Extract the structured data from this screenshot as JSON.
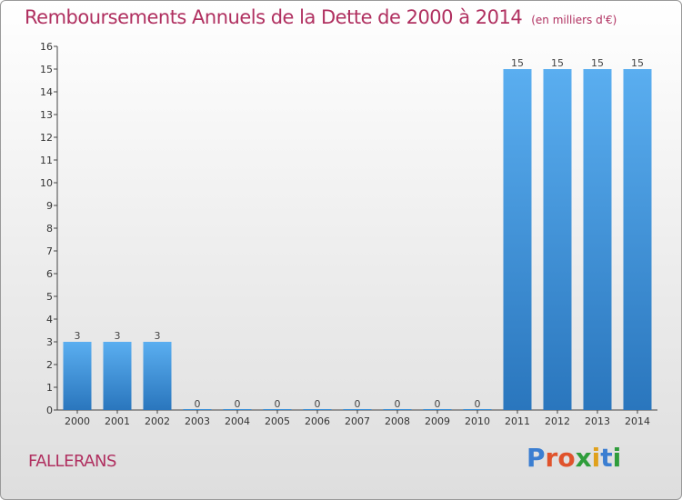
{
  "chart_data": {
    "type": "bar",
    "title": "Remboursements Annuels de la Dette de 2000 à 2014",
    "unit": "(en milliers d'€)",
    "categories": [
      "2000",
      "2001",
      "2002",
      "2003",
      "2004",
      "2005",
      "2006",
      "2007",
      "2008",
      "2009",
      "2010",
      "2011",
      "2012",
      "2013",
      "2014"
    ],
    "values": [
      3,
      3,
      3,
      0,
      0,
      0,
      0,
      0,
      0,
      0,
      0,
      15,
      15,
      15,
      15
    ],
    "yticks": [
      "0",
      "1",
      "2",
      "3",
      "4",
      "5",
      "6",
      "7",
      "8",
      "9",
      "10",
      "11",
      "12",
      "13",
      "14",
      "15",
      "16"
    ],
    "ylim": [
      0,
      16
    ],
    "grid": false,
    "bar_color": "#3a8fd6"
  },
  "commune": "FALLERANS",
  "logo": {
    "letters": [
      {
        "ch": "P",
        "color": "#3b7ed1"
      },
      {
        "ch": "r",
        "color": "#e0532c"
      },
      {
        "ch": "o",
        "color": "#e0532c"
      },
      {
        "ch": "x",
        "color": "#2f9d3b"
      },
      {
        "ch": "i",
        "color": "#e0a11c"
      },
      {
        "ch": "t",
        "color": "#3b7ed1"
      },
      {
        "ch": "i",
        "color": "#2f9d3b"
      }
    ]
  }
}
